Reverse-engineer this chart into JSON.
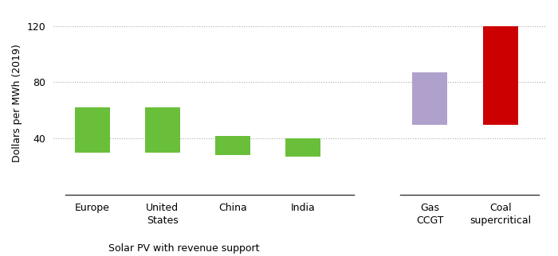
{
  "x_positions": [
    0,
    1,
    2,
    3,
    4.8,
    5.8
  ],
  "bar_labels": [
    "Europe",
    "United\nStates",
    "China",
    "India",
    "Gas\nCCGT",
    "Coal\nsupercritical"
  ],
  "bar_bottoms": [
    30,
    30,
    28,
    27,
    50,
    50
  ],
  "bar_tops": [
    62,
    62,
    42,
    40,
    87,
    120
  ],
  "bar_colors": [
    "#6abf3a",
    "#6abf3a",
    "#6abf3a",
    "#6abf3a",
    "#b0a0cc",
    "#cc0000"
  ],
  "ylabel": "Dollars per MWh (2019)",
  "xlabel": "Solar PV with revenue support",
  "yticks": [
    40,
    80,
    120
  ],
  "ylim": [
    0,
    130
  ],
  "xlim": [
    -0.55,
    6.45
  ],
  "background_color": "#ffffff",
  "grid_color": "#aaaaaa",
  "bar_width": 0.5,
  "axis_color": "#333333",
  "left_xmin": -0.38,
  "left_xmax": 3.72,
  "right_xmin": 4.38,
  "right_xmax": 6.35,
  "xlabel_xdata": 1.65,
  "figsize": [
    7.0,
    3.22
  ],
  "dpi": 100
}
